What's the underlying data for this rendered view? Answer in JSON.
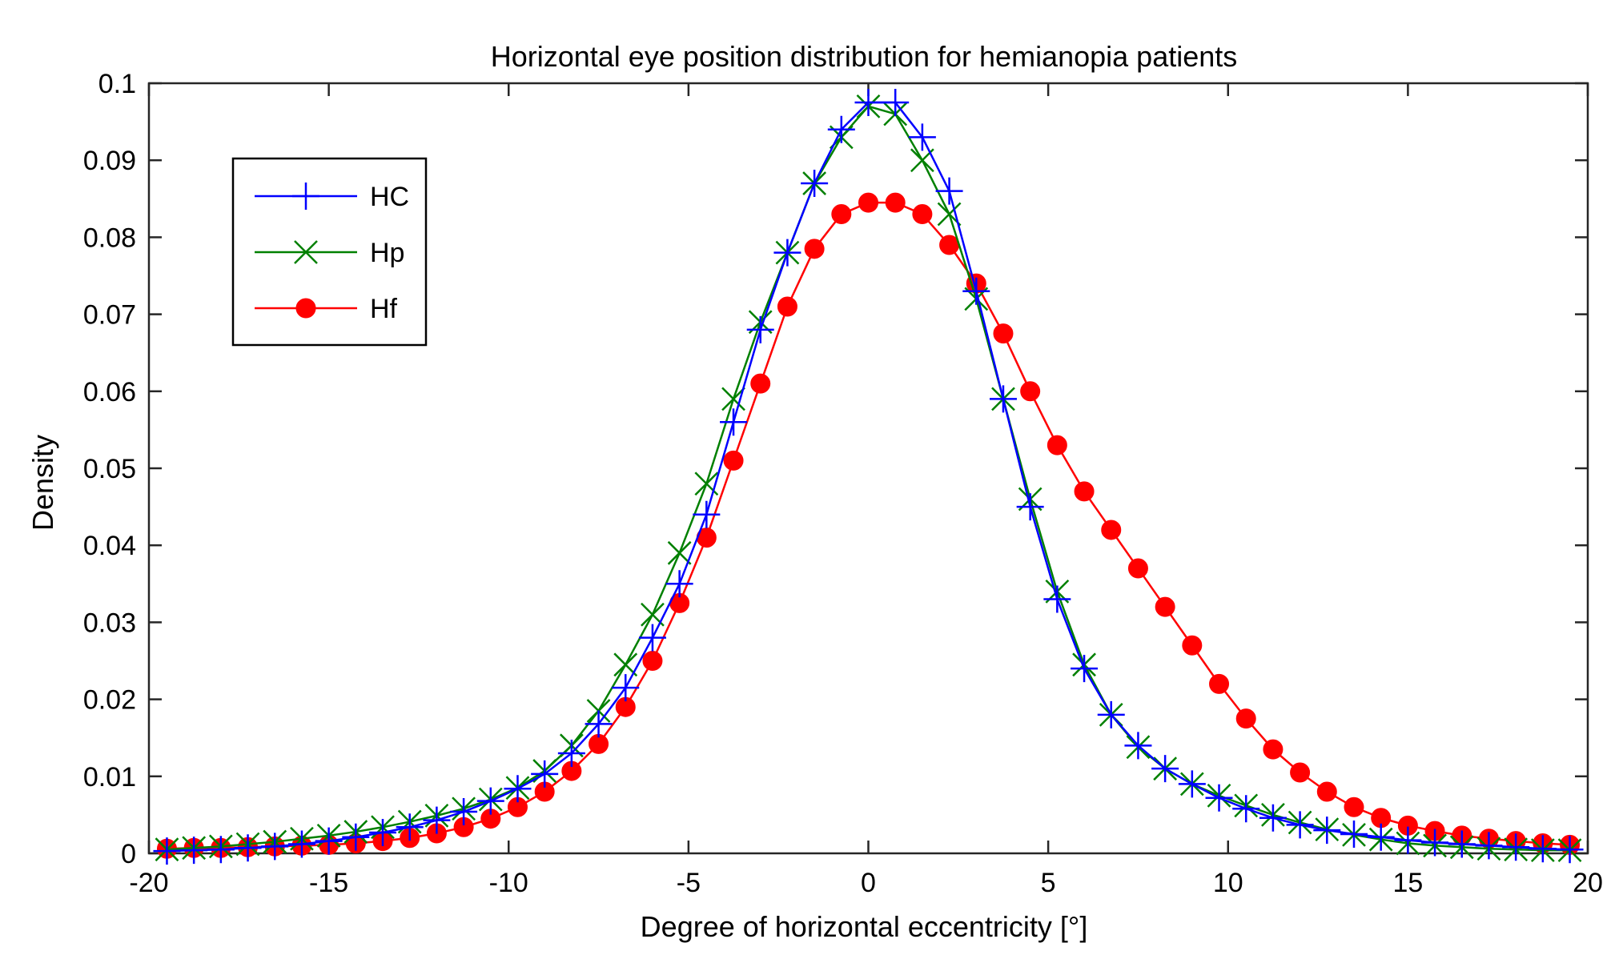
{
  "chart_data": {
    "type": "line",
    "title": "Horizontal eye position distribution for hemianopia patients",
    "xlabel": "Degree of horizontal eccentricity [°]",
    "ylabel": "Density",
    "xlim": [
      -20,
      20
    ],
    "ylim": [
      0,
      0.1
    ],
    "xticks": [
      -20,
      -15,
      -10,
      -5,
      0,
      5,
      10,
      15,
      20
    ],
    "xtick_labels": [
      "-20",
      "-15",
      "-10",
      "-5",
      "0",
      "5",
      "10",
      "15",
      "20"
    ],
    "yticks": [
      0,
      0.01,
      0.02,
      0.03,
      0.04,
      0.05,
      0.06,
      0.07,
      0.08,
      0.09,
      0.1
    ],
    "ytick_labels": [
      "0",
      "0.01",
      "0.02",
      "0.03",
      "0.04",
      "0.05",
      "0.06",
      "0.07",
      "0.08",
      "0.09",
      "0.1"
    ],
    "grid": false,
    "legend_position": "top-left",
    "x": [
      -19.5,
      -18.75,
      -18.0,
      -17.25,
      -16.5,
      -15.75,
      -15.0,
      -14.25,
      -13.5,
      -12.75,
      -12.0,
      -11.25,
      -10.5,
      -9.75,
      -9.0,
      -8.25,
      -7.5,
      -6.75,
      -6.0,
      -5.25,
      -4.5,
      -3.75,
      -3.0,
      -2.25,
      -1.5,
      -0.75,
      0.0,
      0.75,
      1.5,
      2.25,
      3.0,
      3.75,
      4.5,
      5.25,
      6.0,
      6.75,
      7.5,
      8.25,
      9.0,
      9.75,
      10.5,
      11.25,
      12.0,
      12.75,
      13.5,
      14.25,
      15.0,
      15.75,
      16.5,
      17.25,
      18.0,
      18.75,
      19.5
    ],
    "series": [
      {
        "name": "HC",
        "color": "#0000ff",
        "marker": "plus",
        "values": [
          0.0003,
          0.0004,
          0.0005,
          0.0007,
          0.0009,
          0.0012,
          0.0016,
          0.0021,
          0.0027,
          0.0034,
          0.0043,
          0.0054,
          0.0068,
          0.0084,
          0.0103,
          0.013,
          0.0168,
          0.0215,
          0.028,
          0.035,
          0.044,
          0.056,
          0.068,
          0.078,
          0.087,
          0.094,
          0.0975,
          0.0975,
          0.093,
          0.086,
          0.073,
          0.059,
          0.045,
          0.033,
          0.024,
          0.018,
          0.014,
          0.011,
          0.009,
          0.0072,
          0.0058,
          0.0046,
          0.0037,
          0.003,
          0.0025,
          0.0021,
          0.0017,
          0.0014,
          0.0012,
          0.001,
          0.0008,
          0.0006,
          0.0005
        ]
      },
      {
        "name": "Hp",
        "color": "#008000",
        "marker": "x",
        "values": [
          0.0005,
          0.0007,
          0.0009,
          0.0012,
          0.0015,
          0.0019,
          0.0023,
          0.0028,
          0.0034,
          0.0041,
          0.0049,
          0.0058,
          0.007,
          0.0085,
          0.0107,
          0.014,
          0.0185,
          0.0245,
          0.031,
          0.039,
          0.048,
          0.059,
          0.069,
          0.078,
          0.087,
          0.093,
          0.097,
          0.096,
          0.09,
          0.083,
          0.072,
          0.059,
          0.046,
          0.034,
          0.0245,
          0.018,
          0.0138,
          0.011,
          0.009,
          0.0075,
          0.0062,
          0.005,
          0.004,
          0.0031,
          0.0024,
          0.0018,
          0.0013,
          0.001,
          0.0008,
          0.0006,
          0.0005,
          0.0004,
          0.0004
        ]
      },
      {
        "name": "Hf",
        "color": "#ff0000",
        "marker": "circle",
        "values": [
          0.0006,
          0.0007,
          0.0007,
          0.0008,
          0.0009,
          0.001,
          0.0011,
          0.0013,
          0.0016,
          0.002,
          0.0026,
          0.0034,
          0.0045,
          0.006,
          0.008,
          0.0107,
          0.0142,
          0.019,
          0.025,
          0.0325,
          0.041,
          0.051,
          0.061,
          0.071,
          0.0785,
          0.083,
          0.0845,
          0.0845,
          0.083,
          0.079,
          0.074,
          0.0675,
          0.06,
          0.053,
          0.047,
          0.042,
          0.037,
          0.032,
          0.027,
          0.022,
          0.0175,
          0.0135,
          0.0105,
          0.008,
          0.006,
          0.0046,
          0.0036,
          0.0029,
          0.0023,
          0.0019,
          0.0016,
          0.0013,
          0.0011
        ]
      }
    ]
  }
}
